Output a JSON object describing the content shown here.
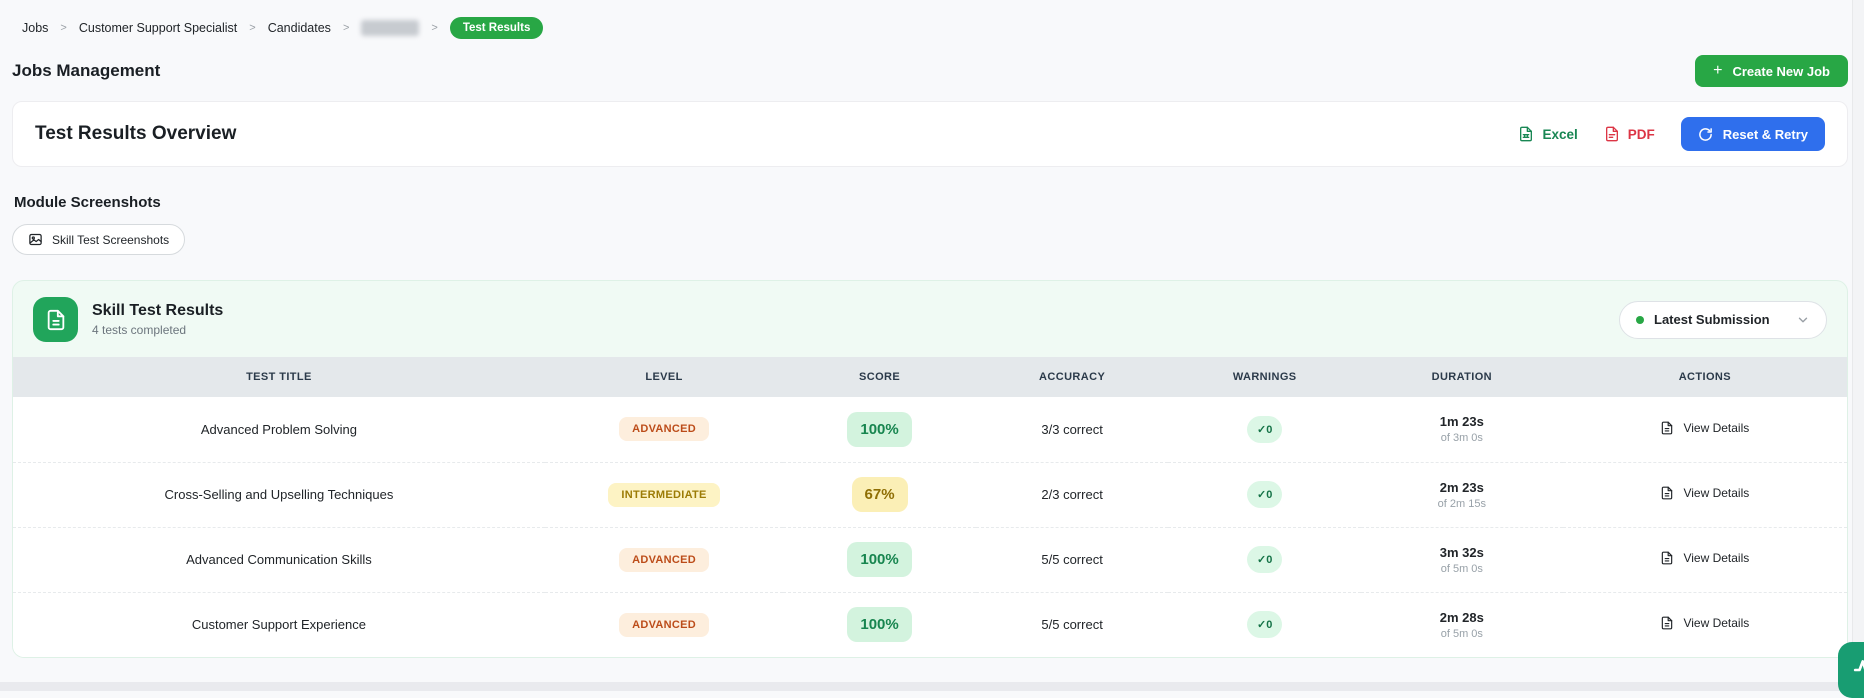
{
  "breadcrumb": {
    "separator": ">",
    "items": [
      "Jobs",
      "Customer Support Specialist",
      "Candidates"
    ],
    "candidate_redacted": true,
    "current": "Test Results"
  },
  "header": {
    "title": "Jobs Management",
    "create_button": "Create New Job",
    "plus": "+"
  },
  "overview": {
    "title": "Test Results Overview",
    "excel_label": "Excel",
    "pdf_label": "PDF",
    "reset_label": "Reset & Retry"
  },
  "modules": {
    "title": "Module Screenshots",
    "screenshots_button": "Skill Test Screenshots"
  },
  "results": {
    "title": "Skill Test Results",
    "subtitle": "4 tests completed",
    "filter_selected": "Latest Submission",
    "columns": [
      "TEST TITLE",
      "LEVEL",
      "SCORE",
      "ACCURACY",
      "WARNINGS",
      "DURATION",
      "ACTIONS"
    ],
    "rows": [
      {
        "title": "Advanced Problem Solving",
        "level": "ADVANCED",
        "level_class": "advanced",
        "score": "100%",
        "score_class": "green",
        "accuracy": "3/3 correct",
        "warnings": "✓0",
        "duration": "1m 23s",
        "duration_of": "of 3m 0s",
        "action": "View Details"
      },
      {
        "title": "Cross-Selling and Upselling Techniques",
        "level": "INTERMEDIATE",
        "level_class": "intermediate",
        "score": "67%",
        "score_class": "yellow",
        "accuracy": "2/3 correct",
        "warnings": "✓0",
        "duration": "2m 23s",
        "duration_of": "of 2m 15s",
        "action": "View Details"
      },
      {
        "title": "Advanced Communication Skills",
        "level": "ADVANCED",
        "level_class": "advanced",
        "score": "100%",
        "score_class": "green",
        "accuracy": "5/5 correct",
        "warnings": "✓0",
        "duration": "3m 32s",
        "duration_of": "of 5m 0s",
        "action": "View Details"
      },
      {
        "title": "Customer Support Experience",
        "level": "ADVANCED",
        "level_class": "advanced",
        "score": "100%",
        "score_class": "green",
        "accuracy": "5/5 correct",
        "warnings": "✓0",
        "duration": "2m 28s",
        "duration_of": "of 5m 0s",
        "action": "View Details"
      }
    ]
  },
  "icons": {
    "plus": "plus-icon",
    "excel": "file-excel-icon",
    "pdf": "file-pdf-icon",
    "refresh": "refresh-icon",
    "image": "image-icon",
    "document": "document-icon",
    "chevron": "chevron-down-icon",
    "status_dot": "green-dot",
    "file_text": "file-text-icon",
    "pulse": "pulse-icon"
  },
  "colors": {
    "brand_green": "#28a745",
    "accent_blue": "#2f6fed",
    "excel_green": "#198754",
    "pdf_red": "#dc3545",
    "results_card_bg": "#f0faf4",
    "tile_green": "#21a55b",
    "table_header_bg": "#e4e8eb",
    "advanced_badge_text": "#bc4c19",
    "intermediate_badge_text": "#9c7b06",
    "score_green_text": "#17854f",
    "warn_green_text": "#157347",
    "fab_green": "#189d72"
  }
}
